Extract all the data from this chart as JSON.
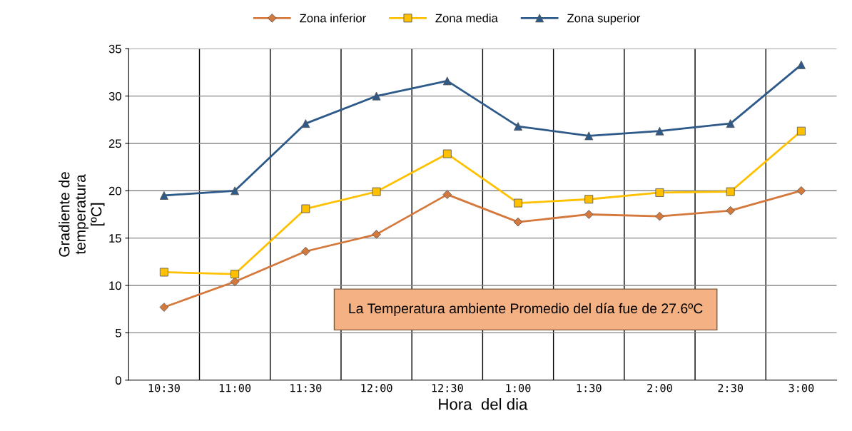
{
  "chart_data": {
    "type": "line",
    "categories": [
      "10:30",
      "11:00",
      "11:30",
      "12:00",
      "12:30",
      "1:00",
      "1:30",
      "2:00",
      "2:30",
      "3:00"
    ],
    "series": [
      {
        "name": "Zona inferior",
        "color": "#d5783c",
        "marker": "diamond",
        "values": [
          7.7,
          10.4,
          13.6,
          15.4,
          19.6,
          16.7,
          17.5,
          17.3,
          17.9,
          20.0
        ]
      },
      {
        "name": "Zona media",
        "color": "#ffc000",
        "marker": "square",
        "values": [
          11.4,
          11.2,
          18.1,
          19.9,
          23.9,
          18.7,
          19.1,
          19.8,
          19.9,
          26.3
        ]
      },
      {
        "name": "Zona superior",
        "color": "#2e5a8a",
        "marker": "triangle",
        "values": [
          19.5,
          20.0,
          27.1,
          30.0,
          31.6,
          26.8,
          25.8,
          26.3,
          27.1,
          33.3
        ]
      }
    ],
    "xlabel": "Hora  del dia",
    "ylabel": "Gradiente de\ntemperatura\n[ºC]",
    "ylim": [
      0,
      35
    ],
    "yticks": [
      0,
      5,
      10,
      15,
      20,
      25,
      30,
      35
    ],
    "grid": true,
    "legend": "top",
    "annotations": [
      "La Temperatura ambiente Promedio del día fue de 27.6ºC"
    ]
  }
}
